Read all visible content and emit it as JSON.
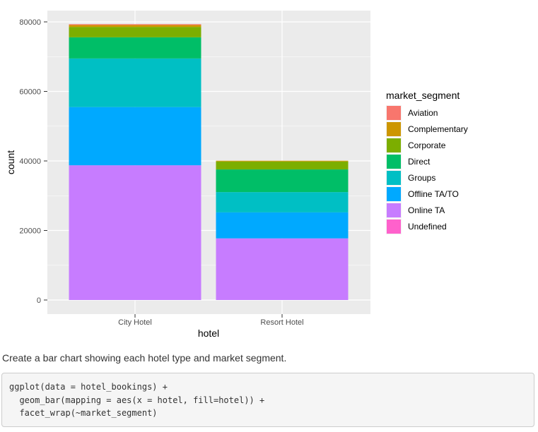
{
  "chart_data": {
    "type": "bar",
    "stacked": true,
    "categories": [
      "City Hotel",
      "Resort Hotel"
    ],
    "xlabel": "hotel",
    "ylabel": "count",
    "ylim": [
      0,
      82000
    ],
    "yticks": [
      0,
      20000,
      40000,
      60000,
      80000
    ],
    "grid": true,
    "legend_title": "market_segment",
    "legend_position": "right",
    "series": [
      {
        "name": "Aviation",
        "color": "#F8766D",
        "values": [
          237,
          0
        ]
      },
      {
        "name": "Complementary",
        "color": "#CD9600",
        "values": [
          542,
          201
        ]
      },
      {
        "name": "Corporate",
        "color": "#7CAE00",
        "values": [
          2986,
          2309
        ]
      },
      {
        "name": "Direct",
        "color": "#00BE67",
        "values": [
          6093,
          6513
        ]
      },
      {
        "name": "Groups",
        "color": "#00BFC4",
        "values": [
          13975,
          5836
        ]
      },
      {
        "name": "Offline TA/TO",
        "color": "#00A9FF",
        "values": [
          16747,
          7472
        ]
      },
      {
        "name": "Online TA",
        "color": "#C77CFF",
        "values": [
          38748,
          17729
        ]
      },
      {
        "name": "Undefined",
        "color": "#FF61CC",
        "values": [
          2,
          0
        ]
      }
    ]
  },
  "text": {
    "description": "Create a bar chart showing each hotel type and market segment.",
    "code_lines": [
      "ggplot(data = hotel_bookings) +",
      "  geom_bar(mapping = aes(x = hotel, fill=hotel)) +",
      "  facet_wrap(~market_segment)"
    ]
  }
}
